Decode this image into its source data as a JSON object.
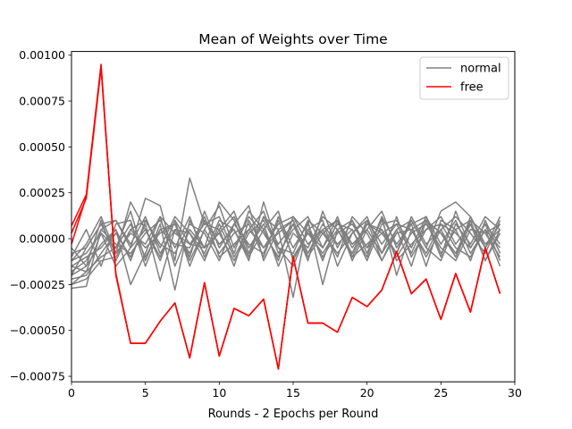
{
  "chart_data": {
    "type": "line",
    "title": "Mean of Weights over Time",
    "xlabel": "Rounds - 2 Epochs per Round",
    "ylabel": "",
    "xlim": [
      0,
      30
    ],
    "ylim": [
      -0.00078,
      0.00102
    ],
    "xticks": [
      0,
      5,
      10,
      15,
      20,
      25,
      30
    ],
    "xtick_labels": [
      "0",
      "5",
      "10",
      "15",
      "20",
      "25",
      "30"
    ],
    "yticks": [
      -0.00075,
      -0.0005,
      -0.00025,
      0.0,
      0.00025,
      0.0005,
      0.00075,
      0.001
    ],
    "ytick_labels": [
      "−0.00075",
      "−0.00050",
      "−0.00025",
      "0.00000",
      "0.00025",
      "0.00050",
      "0.00075",
      "0.00100"
    ],
    "grid": false,
    "legend": {
      "placement": "top-right",
      "entries": [
        {
          "label": "normal",
          "color": "#808080"
        },
        {
          "label": "free",
          "color": "#ff0000"
        }
      ]
    },
    "x": [
      0,
      1,
      2,
      3,
      4,
      5,
      6,
      7,
      8,
      9,
      10,
      11,
      12,
      13,
      14,
      15,
      16,
      17,
      18,
      19,
      20,
      21,
      22,
      23,
      24,
      25,
      26,
      27,
      28,
      29
    ],
    "series": [
      {
        "name": "free",
        "color": "#ff0000",
        "values": [
          7e-05,
          0.00024,
          0.00095,
          -0.00019,
          -0.00057,
          -0.00057,
          -0.00045,
          -0.00035,
          -0.00065,
          -0.00024,
          -0.00064,
          -0.00038,
          -0.00042,
          -0.00033,
          -0.00071,
          -0.0001,
          -0.00046,
          -0.00046,
          -0.00051,
          -0.00032,
          -0.00037,
          -0.00028,
          -7e-05,
          -0.0003,
          -0.00022,
          -0.00044,
          -0.00019,
          -0.0004,
          -5e-05,
          -0.0003
        ]
      },
      {
        "name": "free",
        "color": "#ff0000",
        "values": [
          -3e-05,
          0.00023,
          0.00094,
          -0.0002,
          -0.00057,
          -0.00057,
          -0.00045,
          -0.00035,
          -0.00065,
          -0.00024,
          -0.00064,
          -0.00038,
          -0.00042,
          -0.00033,
          -0.00071,
          -0.0001,
          -0.00046,
          -0.00046,
          -0.00051,
          -0.00032,
          -0.00037,
          -0.00028,
          -7e-05,
          -0.0003,
          -0.00022,
          -0.00044,
          -0.00019,
          -0.0004,
          -5e-05,
          -0.0003
        ]
      },
      {
        "name": "free",
        "color": "#ff0000",
        "values": [
          3e-05,
          0.00022,
          0.00093,
          -0.00019,
          -0.00057,
          -0.00057,
          -0.00045,
          -0.00035,
          -0.00065,
          -0.00024,
          -0.00064,
          -0.00038,
          -0.00042,
          -0.00033,
          -0.00071,
          -0.0001,
          -0.00046,
          -0.00046,
          -0.00051,
          -0.00032,
          -0.00037,
          -0.00028,
          -7e-05,
          -0.0003,
          -0.00022,
          -0.00044,
          -0.00019,
          -0.0004,
          -5e-05,
          -0.0003
        ]
      },
      {
        "name": "normal",
        "color": "#808080",
        "values": [
          -0.00027,
          -0.00026,
          5e-05,
          0.0001,
          -5e-05,
          0.00022,
          0.00018,
          -0.00012,
          0.00033,
          8e-05,
          5e-05,
          0.00015,
          -8e-05,
          0.00012,
          5e-05,
          -0.00032,
          0.0001,
          -0.00025,
          5e-05,
          -0.0001,
          8e-05,
          3e-05,
          -8e-05,
          0.0001,
          -5e-05,
          0.00015,
          0.0002,
          0.00012,
          -5e-05,
          8e-05
        ]
      },
      {
        "name": "normal",
        "color": "#808080",
        "values": [
          -0.0002,
          -5e-05,
          8e-05,
          -8e-05,
          0.0002,
          5e-05,
          -0.0001,
          0.0001,
          -0.00015,
          5e-05,
          0.00018,
          -5e-05,
          0.00012,
          3e-05,
          -0.0001,
          8e-05,
          -0.00012,
          0.00015,
          -5e-05,
          0.0001,
          -8e-05,
          0.00012,
          -0.0002,
          5e-05,
          0.0001,
          -0.0001,
          0.00015,
          -5e-05,
          8e-05,
          -0.00012
        ]
      },
      {
        "name": "normal",
        "color": "#808080",
        "values": [
          -0.00015,
          -0.0001,
          -5e-05,
          5e-05,
          -0.00025,
          -8e-05,
          0.00012,
          -0.00015,
          5e-05,
          -5e-05,
          0.0002,
          0.0001,
          -0.0001,
          5e-05,
          0.00015,
          -0.00012,
          5e-05,
          0.0001,
          -0.00015,
          3e-05,
          0.00012,
          -8e-05,
          5e-05,
          -0.00015,
          0.0001,
          3e-05,
          -0.0001,
          0.00012,
          -3e-05,
          5e-05
        ]
      },
      {
        "name": "normal",
        "color": "#808080",
        "values": [
          -0.0001,
          5e-05,
          -0.00015,
          8e-05,
          0.0001,
          -0.00015,
          5e-05,
          8e-05,
          -0.0001,
          0.00015,
          -5e-05,
          8e-05,
          0.00018,
          -0.00012,
          5e-05,
          0.0001,
          -8e-05,
          5e-05,
          0.0001,
          -0.00012,
          5e-05,
          0.00015,
          -5e-05,
          8e-05,
          -0.00015,
          0.0001,
          5e-05,
          -0.00012,
          0.0001,
          -8e-05
        ]
      },
      {
        "name": "normal",
        "color": "#808080",
        "values": [
          -5e-05,
          -0.00015,
          0.0001,
          -0.00012,
          5e-05,
          0.0001,
          -5e-05,
          0.00012,
          3e-05,
          -0.00012,
          8e-05,
          -0.0001,
          5e-05,
          0.00015,
          -8e-05,
          5e-05,
          0.00012,
          -5e-05,
          8e-05,
          5e-05,
          -0.00012,
          8e-05,
          0.0001,
          -5e-05,
          0.00012,
          -8e-05,
          5e-05,
          0.0001,
          -0.00012,
          3e-05
        ]
      },
      {
        "name": "normal",
        "color": "#808080",
        "values": [
          -0.00022,
          -0.0002,
          -8e-05,
          3e-05,
          -0.0001,
          8e-05,
          -0.00023,
          5e-05,
          -8e-05,
          0.0001,
          -3e-05,
          5e-05,
          -0.00012,
          0.0002,
          -5e-05,
          -0.00015,
          5e-05,
          -0.0001,
          3e-05,
          8e-05,
          -5e-05,
          0.0001,
          -0.00012,
          -3e-05,
          5e-05,
          8e-05,
          -5e-05,
          -0.0001,
          5e-05,
          -0.00015
        ]
      },
      {
        "name": "normal",
        "color": "#808080",
        "values": [
          -0.00012,
          -8e-05,
          3e-05,
          -5e-05,
          0.00015,
          -0.00012,
          8e-05,
          -0.00028,
          0.0001,
          -5e-05,
          3e-05,
          0.00012,
          -5e-05,
          8e-05,
          -0.00015,
          3e-05,
          -5e-05,
          0.00012,
          5e-05,
          -8e-05,
          0.0001,
          -3e-05,
          8e-05,
          5e-05,
          -0.0001,
          5e-05,
          0.00012,
          3e-05,
          -8e-05,
          0.0001
        ]
      },
      {
        "name": "normal",
        "color": "#808080",
        "values": [
          -0.00018,
          -0.00012,
          5e-05,
          -3e-05,
          -8e-05,
          3e-05,
          0.0001,
          -5e-05,
          0.00012,
          -0.0001,
          5e-05,
          -0.00015,
          0.0001,
          -5e-05,
          8e-05,
          0.00012,
          -3e-05,
          5e-05,
          -0.0001,
          0.00012,
          3e-05,
          -0.00012,
          5e-05,
          0.0001,
          -5e-05,
          -0.00012,
          8e-05,
          -3e-05,
          0.00012,
          5e-05
        ]
      },
      {
        "name": "normal",
        "color": "#808080",
        "values": [
          -0.00025,
          -0.00022,
          -0.00012,
          -0.0001,
          5e-05,
          -5e-05,
          3e-05,
          8e-05,
          -0.00012,
          5e-05,
          -8e-05,
          3e-05,
          8e-05,
          -0.0001,
          0.00012,
          -5e-05,
          8e-05,
          -0.00012,
          0.0001,
          -5e-05,
          8e-05,
          5e-05,
          -0.0001,
          3e-05,
          8e-05,
          -5e-05,
          -0.00012,
          5e-05,
          3e-05,
          -0.0001
        ]
      },
      {
        "name": "normal",
        "color": "#808080",
        "values": [
          -8e-05,
          -5e-05,
          8e-05,
          0.0001,
          -3e-05,
          0.00012,
          -8e-05,
          5e-05,
          3e-05,
          -8e-05,
          0.0001,
          5e-05,
          -0.0001,
          0.00012,
          -3e-05,
          8e-05,
          -0.0001,
          3e-05,
          0.0001,
          -3e-05,
          5e-05,
          -8e-05,
          0.00012,
          -0.0001,
          5e-05,
          0.00012,
          -3e-05,
          8e-05,
          -5e-05,
          0.00012
        ]
      },
      {
        "name": "normal",
        "color": "#808080",
        "values": [
          -0.0002,
          -0.00015,
          -3e-05,
          5e-05,
          -0.00012,
          0.0001,
          -3e-05,
          -8e-05,
          8e-05,
          3e-05,
          -0.00012,
          8e-05,
          -3e-05,
          -8e-05,
          0.0001,
          -0.0001,
          3e-05,
          -5e-05,
          0.00012,
          -0.0001,
          -3e-05,
          5e-05,
          -8e-05,
          0.00012,
          -3e-05,
          5e-05,
          -0.0001,
          8e-05,
          -0.00012,
          5e-05
        ]
      },
      {
        "name": "normal",
        "color": "#808080",
        "values": [
          -0.00015,
          -0.00018,
          -0.0001,
          -5e-05,
          8e-05,
          -0.0001,
          5e-05,
          -3e-05,
          -5e-05,
          0.00012,
          -0.0001,
          -3e-05,
          5e-05,
          -5e-05,
          3e-05,
          0.0001,
          -8e-05,
          8e-05,
          -3e-05,
          5e-05,
          -0.0001,
          0.00012,
          -3e-05,
          8e-05,
          0.00012,
          -3e-05,
          0.0001,
          -8e-05,
          5e-05,
          -5e-05
        ]
      },
      {
        "name": "normal",
        "color": "#808080",
        "values": [
          -0.00012,
          -3e-05,
          0.00012,
          -8e-05,
          3e-05,
          -3e-05,
          0.00012,
          3e-05,
          -3e-05,
          8e-05,
          0.00012,
          -8e-05,
          0.00015,
          5e-05,
          -0.00012,
          0.00012,
          3e-05,
          -8e-05,
          5e-05,
          0.0001,
          -5e-05,
          3e-05,
          8e-05,
          -8e-05,
          0.0001,
          3e-05,
          -8e-05,
          0.0001,
          3e-05,
          8e-05
        ]
      },
      {
        "name": "normal",
        "color": "#808080",
        "values": [
          -0.00025,
          -0.00018,
          3e-05,
          -0.00015,
          -5e-05,
          5e-05,
          -0.00012,
          0.0001,
          -3e-05,
          -5e-05,
          3e-05,
          -0.00012,
          3e-05,
          0.0001,
          -5e-05,
          -8e-05,
          0.0001,
          3e-05,
          -8e-05,
          3e-05,
          0.0001,
          -0.00012,
          3e-05,
          5e-05,
          -8e-05,
          8e-05,
          3e-05,
          -5e-05,
          8e-05,
          -3e-05
        ]
      }
    ]
  }
}
